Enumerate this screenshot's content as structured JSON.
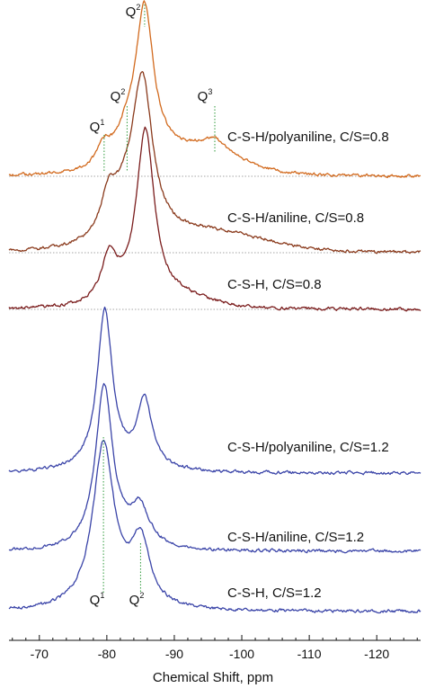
{
  "chart_data": {
    "type": "line",
    "title": "",
    "xlabel": "Chemical Shift, ppm",
    "ylabel": "",
    "x_axis": {
      "range": [
        -65.5,
        -126.5
      ],
      "ticks": [
        -70,
        -80,
        -90,
        -100,
        -110,
        -120
      ],
      "tick_labels": [
        "-70",
        "-80",
        "-90",
        "-100",
        "-110",
        "-120"
      ],
      "reversed": true
    },
    "y_axis": {
      "shown": false
    },
    "grid": false,
    "legend": "none",
    "colors": {
      "orange": "#d26a1e",
      "brown": "#8a3a1c",
      "darkred": "#7a1c1c",
      "blue": "#3a44a8",
      "guide": "#2e9a3a",
      "baseline": "#888888"
    },
    "series": [
      {
        "label": "C-S-H/polyaniline, C/S=0.8",
        "color": "orange",
        "baseline_dotted": true,
        "peaks": [
          {
            "center": -79.6,
            "height": 0.12,
            "width": 1.2
          },
          {
            "center": -83.0,
            "height": 0.15,
            "width": 2.0
          },
          {
            "center": -85.6,
            "height": 0.95,
            "width": 1.6
          },
          {
            "center": -96.0,
            "height": 0.1,
            "width": 2.5
          }
        ],
        "broad": {
          "height": 0.14,
          "center": -92,
          "width": 10
        }
      },
      {
        "label": "C-S-H/aniline, C/S=0.8",
        "color": "brown",
        "baseline_dotted": true,
        "peaks": [
          {
            "center": -80.3,
            "height": 0.25,
            "width": 1.5
          },
          {
            "center": -85.3,
            "height": 0.95,
            "width": 1.8
          },
          {
            "center": -83.0,
            "height": 0.2,
            "width": 2.5
          }
        ],
        "broad": {
          "height": 0.12,
          "center": -95,
          "width": 12
        }
      },
      {
        "label": "C-S-H, C/S=0.8",
        "color": "darkred",
        "baseline_dotted": true,
        "peaks": [
          {
            "center": -80.4,
            "height": 0.28,
            "width": 1.5
          },
          {
            "center": -85.7,
            "height": 1.0,
            "width": 1.6
          }
        ],
        "broad": {
          "height": 0.06,
          "center": -90,
          "width": 7
        }
      },
      {
        "label": "C-S-H/polyaniline, C/S=1.2",
        "color": "blue",
        "baseline_dotted": false,
        "peaks": [
          {
            "center": -79.7,
            "height": 1.0,
            "width": 1.35
          },
          {
            "center": -85.6,
            "height": 0.42,
            "width": 1.35
          }
        ],
        "broad": {
          "height": 0.03,
          "center": -82,
          "width": 8
        }
      },
      {
        "label": "C-S-H/aniline, C/S=1.2",
        "color": "blue",
        "baseline_dotted": false,
        "peaks": [
          {
            "center": -79.6,
            "height": 1.0,
            "width": 1.5
          },
          {
            "center": -84.9,
            "height": 0.22,
            "width": 1.6
          }
        ],
        "broad": {
          "height": 0.05,
          "center": -82,
          "width": 6
        }
      },
      {
        "label": "C-S-H, C/S=1.2",
        "color": "blue",
        "baseline_dotted": false,
        "peaks": [
          {
            "center": -79.5,
            "height": 1.0,
            "width": 1.9
          },
          {
            "center": -85.0,
            "height": 0.38,
            "width": 1.6
          }
        ],
        "broad": {
          "height": 0.05,
          "center": -82,
          "width": 6
        }
      }
    ],
    "annotations": [
      {
        "text": "Q",
        "sup": "2",
        "x": -85.6,
        "series": 0
      },
      {
        "text": "Q",
        "sup": "2",
        "x": -83.0,
        "series": 0
      },
      {
        "text": "Q",
        "sup": "1",
        "x": -79.6,
        "series": 0
      },
      {
        "text": "Q",
        "sup": "3",
        "x": -96.0,
        "series": 0
      },
      {
        "text": "Q",
        "sup": "1",
        "x": -79.5,
        "series": 5
      },
      {
        "text": "Q",
        "sup": "2",
        "x": -85.0,
        "series": 5
      }
    ]
  }
}
